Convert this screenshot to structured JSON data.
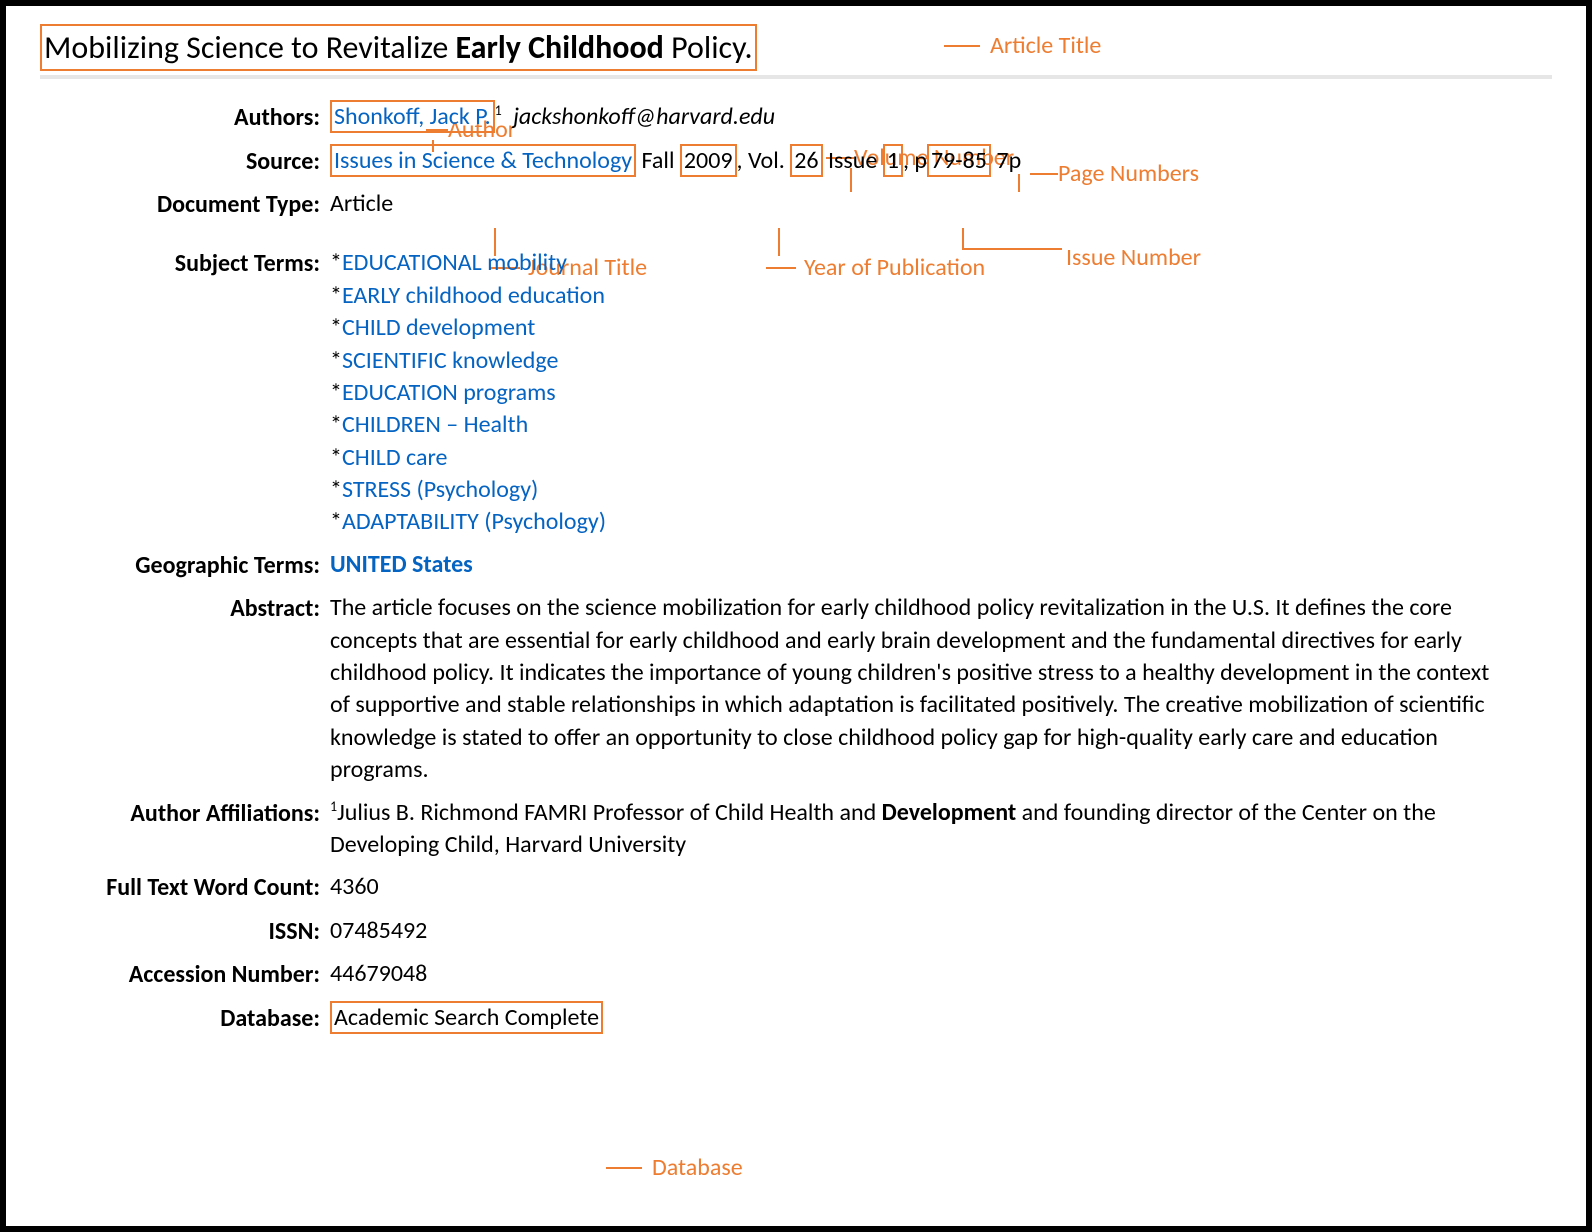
{
  "colors": {
    "annotation": "#ed7d31",
    "link": "#0563c1",
    "text": "#000000",
    "divider": "#e6e6e6",
    "border": "#000000",
    "background": "#ffffff"
  },
  "typography": {
    "title_fontsize": 32,
    "body_fontsize": 24,
    "annotation_fontsize": 24,
    "font_family": "Segoe UI / Calibri"
  },
  "title": {
    "pre": "Mobilizing Science to Revitalize ",
    "bold": "Early Childhood",
    "post": " Policy."
  },
  "annotations": {
    "article_title": "Article Title",
    "author": "Author",
    "journal_title": "Journal Title",
    "year": "Year of Publication",
    "volume": "Volume Number",
    "issue": "Issue Number",
    "pages": "Page Numbers",
    "database": "Database"
  },
  "labels": {
    "authors": "Authors:",
    "source": "Source:",
    "doc_type": "Document Type:",
    "subject_terms": "Subject Terms:",
    "geo_terms": "Geographic Terms:",
    "abstract": "Abstract:",
    "affiliations": "Author Affiliations:",
    "word_count": "Full Text Word Count:",
    "issn": "ISSN:",
    "accession": "Accession Number:",
    "database": "Database:"
  },
  "authors": {
    "name": "Shonkoff, Jack P.",
    "sup": "1",
    "email": "jackshonkoff@harvard.edu"
  },
  "source": {
    "journal": "Issues in Science & Technology",
    "season": " Fall ",
    "year": "2009",
    "vol_label": ", Vol. ",
    "volume": "26",
    "issue_label": " Issue ",
    "issue": "1",
    "p_label": ", p",
    "pages": "79-85",
    "extent": " 7p"
  },
  "doc_type": "Article",
  "subject_terms": [
    "EDUCATIONAL mobility",
    "EARLY childhood education",
    "CHILD development",
    "SCIENTIFIC knowledge",
    "EDUCATION programs",
    "CHILDREN – Health",
    "CHILD care",
    "STRESS (Psychology)",
    "ADAPTABILITY (Psychology)"
  ],
  "geo_terms": "UNITED States",
  "abstract": "The article focuses on the science mobilization for early childhood policy revitalization in the U.S. It defines the core concepts that are essential for early childhood and early brain development and the fundamental directives for early childhood policy. It indicates the importance of young children's positive stress to a healthy development in the context of supportive and stable relationships in which adaptation is facilitated positively. The creative mobilization of scientific knowledge is stated to offer an opportunity to close childhood policy gap for high-quality early care and education programs.",
  "affiliations": {
    "sup": "1",
    "pre": "Julius B. Richmond FAMRI Professor of Child Health and ",
    "bold": "Development",
    "post": " and founding director of the Center on the Developing Child, Harvard University"
  },
  "word_count": "4360",
  "issn": "07485492",
  "accession": "44679048",
  "database": "Academic Search Complete"
}
